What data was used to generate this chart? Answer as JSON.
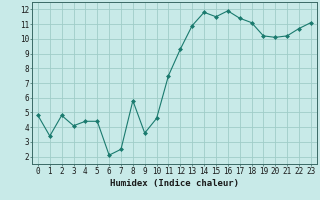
{
  "x": [
    0,
    1,
    2,
    3,
    4,
    5,
    6,
    7,
    8,
    9,
    10,
    11,
    12,
    13,
    14,
    15,
    16,
    17,
    18,
    19,
    20,
    21,
    22,
    23
  ],
  "y": [
    4.8,
    3.4,
    4.8,
    4.1,
    4.4,
    4.4,
    2.1,
    2.5,
    5.8,
    3.6,
    4.6,
    7.5,
    9.3,
    10.9,
    11.8,
    11.5,
    11.9,
    11.4,
    11.1,
    10.2,
    10.1,
    10.2,
    10.7,
    11.1
  ],
  "xlabel": "Humidex (Indice chaleur)",
  "ylim": [
    1.5,
    12.5
  ],
  "xlim": [
    -0.5,
    23.5
  ],
  "line_color": "#1a7a6e",
  "marker_color": "#1a7a6e",
  "bg_color": "#c8eae8",
  "grid_color": "#a0cdc8",
  "tick_label_color": "#1a1a1a",
  "xlabel_color": "#1a1a1a",
  "yticks": [
    2,
    3,
    4,
    5,
    6,
    7,
    8,
    9,
    10,
    11,
    12
  ],
  "xticks": [
    0,
    1,
    2,
    3,
    4,
    5,
    6,
    7,
    8,
    9,
    10,
    11,
    12,
    13,
    14,
    15,
    16,
    17,
    18,
    19,
    20,
    21,
    22,
    23
  ],
  "tick_fontsize": 5.5,
  "xlabel_fontsize": 6.5
}
